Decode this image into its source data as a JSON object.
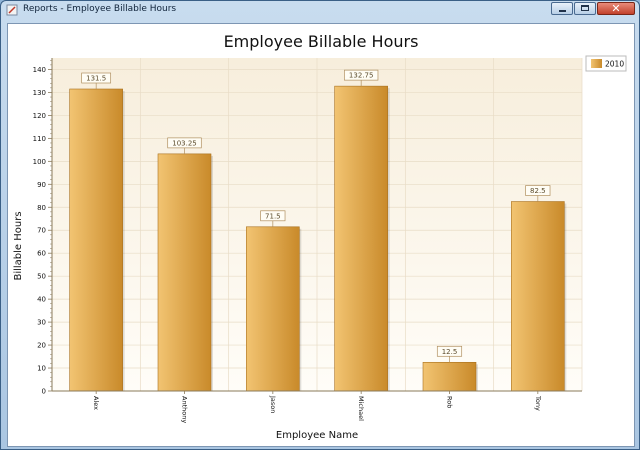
{
  "window": {
    "title": "Reports - Employee Billable Hours",
    "icon": "report-icon",
    "controls": {
      "minimize": "minimize-icon",
      "maximize": "maximize-icon",
      "close": "close-icon"
    }
  },
  "colors": {
    "bar_light": "#f2c472",
    "bar_dark": "#c98a2a",
    "plot_bg_top": "#f7eedc",
    "plot_bg_bottom": "#fffdf8",
    "grid": "#e8dcc6",
    "axis": "#8a7a5a"
  },
  "chart_data": {
    "type": "bar",
    "title": "Employee Billable Hours",
    "xlabel": "Employee Name",
    "ylabel": "Billable Hours",
    "categories": [
      "Alex",
      "Anthony",
      "Jason",
      "Michael",
      "Rob",
      "Tony"
    ],
    "series": [
      {
        "name": "2010",
        "values": [
          131.5,
          103.25,
          71.5,
          132.75,
          12.5,
          82.5
        ]
      }
    ],
    "data_labels": [
      "131.5",
      "103.25",
      "71.5",
      "132.75",
      "12.5",
      "82.5"
    ],
    "ylim": [
      0,
      145
    ],
    "yticks": [
      0,
      10,
      20,
      30,
      40,
      50,
      60,
      70,
      80,
      90,
      100,
      110,
      120,
      130,
      140
    ],
    "grid": true,
    "legend_position": "top-right"
  }
}
